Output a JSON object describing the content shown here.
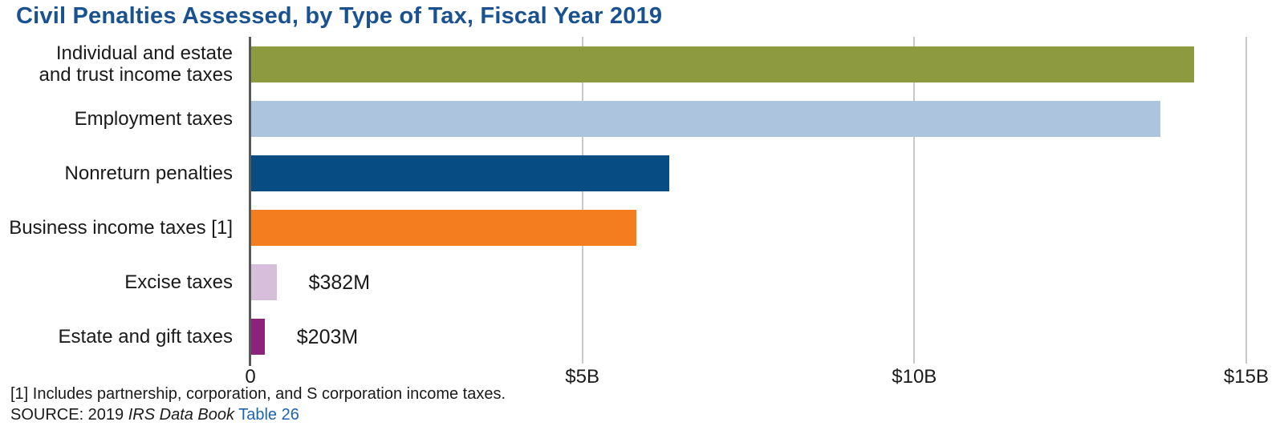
{
  "source": {
    "prefix": "SOURCE: 2019",
    "publication": "IRS Data Book",
    "link": "Table 26"
  },
  "footnote": "[1] Includes partnership, corporation, and S corporation income taxes.",
  "colors": {
    "title": "#1A5291",
    "link": "#1B64B4",
    "axis_line": "#595959",
    "gridline": "#C9C9C9",
    "text": "#1a1a1a"
  },
  "chart_data": {
    "type": "bar",
    "orientation": "horizontal",
    "title": "Civil Penalties Assessed, by Type of Tax, Fiscal Year 2019",
    "xlabel": "",
    "ylabel": "",
    "unit": "USD billions",
    "xlim": [
      0,
      15
    ],
    "grid": "vertical",
    "legend": "none",
    "categories": [
      "Individual and estate\nand trust income taxes",
      "Employment taxes",
      "Nonreturn penalties",
      "Business income taxes [1]",
      "Excise taxes",
      "Estate and gift taxes"
    ],
    "values": [
      14.2,
      13.7,
      6.3,
      5.8,
      0.382,
      0.203
    ],
    "value_labels": [
      "",
      "",
      "",
      "",
      "$382M",
      "$203M"
    ],
    "bar_colors": [
      "#8D9A40",
      "#ACC4DD",
      "#074C82",
      "#F47D20",
      "#D7BEDA",
      "#8B237A"
    ],
    "x_ticks": [
      {
        "value": 0,
        "label": "0"
      },
      {
        "value": 5,
        "label": "$5B"
      },
      {
        "value": 10,
        "label": "$10B"
      },
      {
        "value": 15,
        "label": "$15B"
      }
    ]
  }
}
